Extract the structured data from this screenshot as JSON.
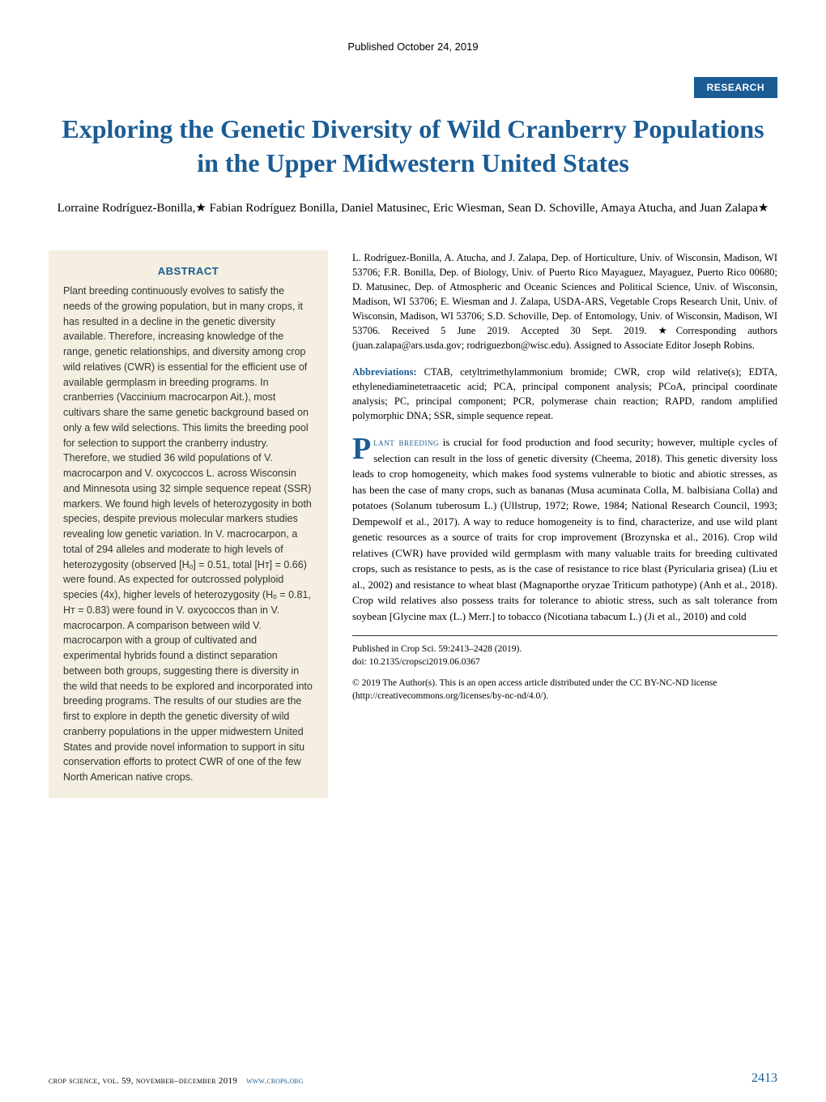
{
  "header": {
    "publish_date": "Published October 24, 2019",
    "badge": "RESEARCH"
  },
  "title": "Exploring the Genetic Diversity of Wild Cranberry Populations in the Upper Midwestern United States",
  "authors": "Lorraine Rodríguez-Bonilla,★ Fabian Rodríguez Bonilla, Daniel Matusinec, Eric Wiesman, Sean D. Schoville, Amaya Atucha, and Juan Zalapa★",
  "abstract": {
    "heading": "ABSTRACT",
    "text": "Plant breeding continuously evolves to satisfy the needs of the growing population, but in many crops, it has resulted in a decline in the genetic diversity available. Therefore, increasing knowledge of the range, genetic relationships, and diversity among crop wild relatives (CWR) is essential for the efficient use of available germplasm in breeding programs. In cranberries (Vaccinium macrocarpon Ait.), most cultivars share the same genetic background based on only a few wild selections. This limits the breeding pool for selection to support the cranberry industry. Therefore, we studied 36 wild populations of V. macrocarpon and V. oxycoccos L. across Wisconsin and Minnesota using 32 simple sequence repeat (SSR) markers. We found high levels of heterozygosity in both species, despite previous molecular markers studies revealing low genetic variation. In V. macrocarpon, a total of 294 alleles and moderate to high levels of heterozygosity (observed [Hₒ] = 0.51, total [Hᴛ] = 0.66) were found. As expected for outcrossed polyploid species (4x), higher levels of heterozygosity (Hₒ = 0.81, Hᴛ = 0.83) were found in V. oxycoccos than in V. macrocarpon. A comparison between wild V. macrocarpon with a group of cultivated and experimental hybrids found a distinct separation between both groups, suggesting there is diversity in the wild that needs to be explored and incorporated into breeding programs. The results of our studies are the first to explore in depth the genetic diversity of wild cranberry populations in the upper midwestern United States and provide novel information to support in situ conservation efforts to protect CWR of one of the few North American native crops."
  },
  "affiliations": "L. Rodríguez-Bonilla, A. Atucha, and J. Zalapa, Dep. of Horticulture, Univ. of Wisconsin, Madison, WI 53706; F.R. Bonilla, Dep. of Biology, Univ. of Puerto Rico Mayaguez, Mayaguez, Puerto Rico 00680; D. Matusinec, Dep. of Atmospheric and Oceanic Sciences and Political Science, Univ. of Wisconsin, Madison, WI 53706; E. Wiesman and J. Zalapa, USDA-ARS, Vegetable Crops Research Unit, Univ. of Wisconsin, Madison, WI 53706; S.D. Schoville, Dep. of Entomology, Univ. of Wisconsin, Madison, WI 53706. Received 5 June 2019. Accepted 30 Sept. 2019. ★Corresponding authors (juan.zalapa@ars.usda.gov; rodriguezbon@wisc.edu). Assigned to Associate Editor Joseph Robins.",
  "abbreviations": {
    "label": "Abbreviations:",
    "text": " CTAB, cetyltrimethylammonium bromide; CWR, crop wild relative(s); EDTA, ethylenediaminetetraacetic acid; PCA, principal component analysis; PCoA, principal coordinate analysis; PC, principal component; PCR, polymerase chain reaction; RAPD, random amplified polymorphic DNA; SSR, simple sequence repeat."
  },
  "body": {
    "dropcap": "P",
    "smallcaps": "lant breeding",
    "text": " is crucial for food production and food security; however, multiple cycles of selection can result in the loss of genetic diversity (Cheema, 2018). This genetic diversity loss leads to crop homogeneity, which makes food systems vulnerable to biotic and abiotic stresses, as has been the case of many crops, such as bananas (Musa acuminata Colla, M. balbisiana Colla) and potatoes (Solanum tuberosum L.) (Ullstrup, 1972; Rowe, 1984; National Research Council, 1993; Dempewolf et al., 2017). A way to reduce homogeneity is to find, characterize, and use wild plant genetic resources as a source of traits for crop improvement (Brozynska et al., 2016). Crop wild relatives (CWR) have provided wild germplasm with many valuable traits for breeding cultivated crops, such as resistance to pests, as is the case of resistance to rice blast (Pyricularia grisea) (Liu et al., 2002) and resistance to wheat blast (Magnaporthe oryzae Triticum pathotype) (Anh et al., 2018). Crop wild relatives also possess traits for tolerance to abiotic stress, such as salt tolerance from soybean [Glycine max (L.) Merr.] to tobacco (Nicotiana tabacum L.) (Ji et al., 2010) and cold"
  },
  "pub_info": {
    "citation": "Published in Crop Sci. 59:2413–2428 (2019).",
    "doi": "doi: 10.2135/cropsci2019.06.0367"
  },
  "copyright": "© 2019 The Author(s). This is an open access article distributed under the CC BY-NC-ND license (http://creativecommons.org/licenses/by-nc-nd/4.0/).",
  "footer": {
    "journal": "crop science, vol. 59, november–december 2019",
    "url": "www.crops.org",
    "page": "2413"
  },
  "colors": {
    "brand_blue": "#1b5c94",
    "abstract_bg": "#f4efe0"
  }
}
